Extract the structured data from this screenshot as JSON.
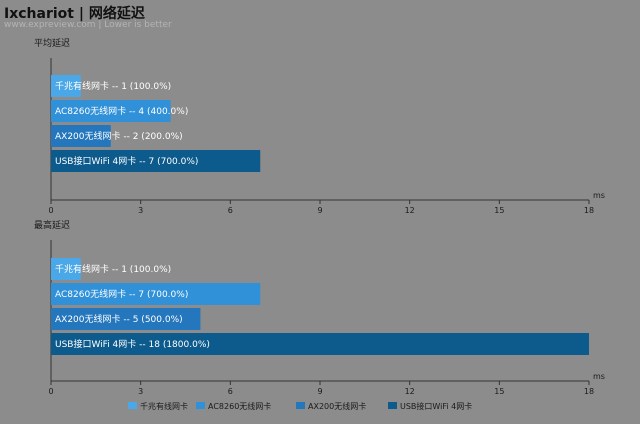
{
  "header": {
    "title": "Ixchariot | 网络延迟",
    "subtitle": "www.expreview.com | Lower is better"
  },
  "chart_data": {
    "type": "bar",
    "orientation": "horizontal",
    "unit": "ms",
    "xlim": [
      0,
      18
    ],
    "ticks": [
      0,
      3,
      6,
      9,
      12,
      15,
      18
    ],
    "series_colors": [
      "#4aa7e8",
      "#3090d8",
      "#2476bd",
      "#0d5a8c"
    ],
    "legend": [
      "千兆有线网卡",
      "AC8260无线网卡",
      "AX200无线网卡",
      "USB接口WiFi 4网卡"
    ],
    "legend_position": "bottom",
    "panels": [
      {
        "title": "平均延迟",
        "bars": [
          {
            "label": "千兆有线网卡",
            "value": 1,
            "pct": "100.0%"
          },
          {
            "label": "AC8260无线网卡",
            "value": 4,
            "pct": "400.0%"
          },
          {
            "label": "AX200无线网卡",
            "value": 2,
            "pct": "200.0%"
          },
          {
            "label": "USB接口WiFi 4网卡",
            "value": 7,
            "pct": "700.0%"
          }
        ]
      },
      {
        "title": "最高延迟",
        "bars": [
          {
            "label": "千兆有线网卡",
            "value": 1,
            "pct": "100.0%"
          },
          {
            "label": "AC8260无线网卡",
            "value": 7,
            "pct": "700.0%"
          },
          {
            "label": "AX200无线网卡",
            "value": 5,
            "pct": "500.0%"
          },
          {
            "label": "USB接口WiFi 4网卡",
            "value": 18,
            "pct": "1800.0%"
          }
        ]
      }
    ]
  }
}
